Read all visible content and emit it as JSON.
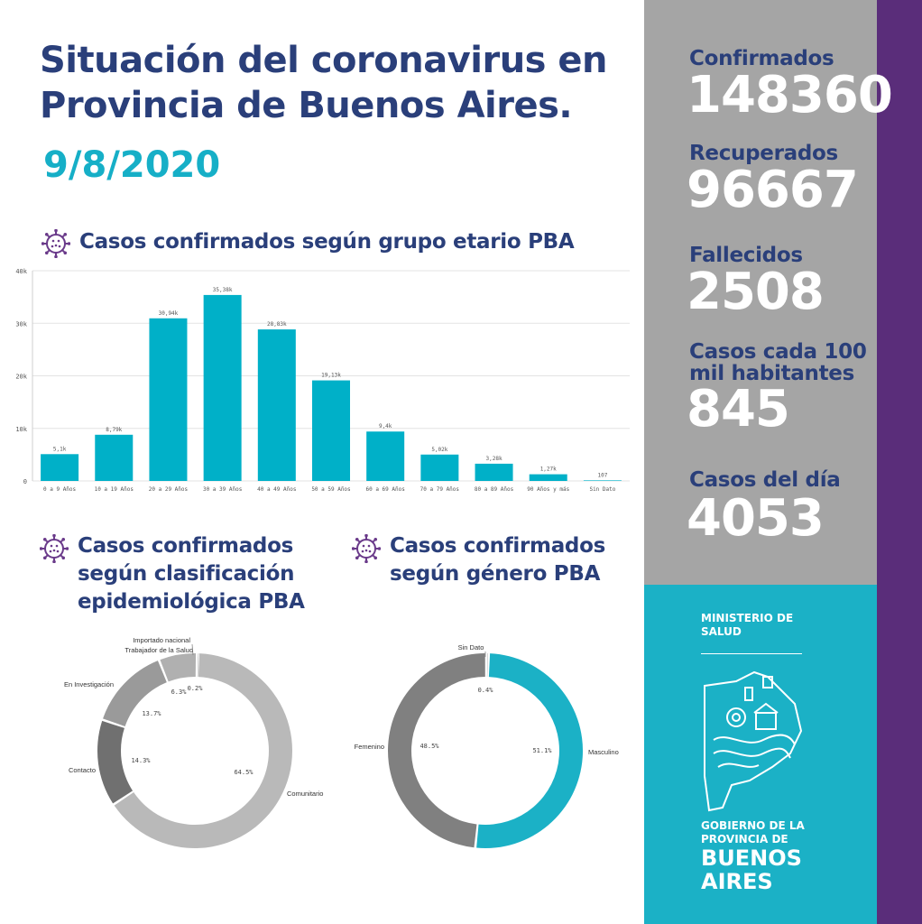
{
  "header": {
    "title_line1": "Situación del coronavirus en",
    "title_line2": "Provincia de Buenos Aires.",
    "date": "9/8/2020"
  },
  "sections": {
    "age_title": "Casos confirmados según grupo etario PBA",
    "epi_title_l1": "Casos confirmados",
    "epi_title_l2": "según clasificación",
    "epi_title_l3": "epidemiológica PBA",
    "gender_title_l1": "Casos confirmados",
    "gender_title_l2": "según género PBA"
  },
  "stats": {
    "confirmados_label": "Confirmados",
    "confirmados_value": "148360",
    "recuperados_label": "Recuperados",
    "recuperados_value": "96667",
    "fallecidos_label": "Fallecidos",
    "fallecidos_value": "2508",
    "casos100_label_l1": "Casos cada 100",
    "casos100_label_l2": "mil habitantes",
    "casos100_value": "845",
    "casosdia_label": "Casos del día",
    "casosdia_value": "4053"
  },
  "branding": {
    "ministry_l1": "MINISTERIO DE",
    "ministry_l2": "SALUD",
    "gov_l1": "GOBIERNO DE LA",
    "gov_l2": "PROVINCIA DE",
    "gov_l3": "BUENOS",
    "gov_l4": "AIRES"
  },
  "colors": {
    "navy": "#2a3f7a",
    "cyan": "#16afc7",
    "bar": "#00b0c8",
    "gray_sidebar": "#a5a5a5",
    "purple": "#5a2d7a",
    "icon_purple": "#6a3a8a"
  },
  "icons": {
    "section_icon": "virus-icon",
    "logo": "buenos-aires-province-logo"
  },
  "chart_data": [
    {
      "type": "bar",
      "categories": [
        "0 a 9 Años",
        "10 a 19 Años",
        "20 a 29 Años",
        "30 a 39 Años",
        "40 a 49 Años",
        "50 a 59 Años",
        "60 a 69 Años",
        "70 a 79 Años",
        "80 a 89 Años",
        "90 Años y más",
        "Sin Dato"
      ],
      "values": [
        5100,
        8790,
        30940,
        35380,
        28830,
        19130,
        9400,
        5020,
        3280,
        1270,
        107
      ],
      "data_labels": [
        "5,1k",
        "8,79k",
        "30,94k",
        "35,38k",
        "28,83k",
        "19,13k",
        "9,4k",
        "5,02k",
        "3,28k",
        "1,27k",
        "107"
      ],
      "yticks": [
        0,
        10000,
        20000,
        30000,
        40000
      ],
      "ytick_labels": [
        "0",
        "10k",
        "20k",
        "30k",
        "40k"
      ],
      "ylim": [
        0,
        40000
      ],
      "grid": true
    },
    {
      "type": "pie",
      "variant": "donut",
      "labels": [
        "Comunitario",
        "Contacto",
        "En Investigación",
        "Trabajador de la Salud",
        "Importado nacional"
      ],
      "values": [
        64.5,
        14.3,
        13.7,
        6.3,
        0.2
      ],
      "value_labels": [
        "64.5%",
        "14.3%",
        "13.7%",
        "6.3%",
        "0.2%"
      ],
      "colors": [
        "#b9b9b9",
        "#707070",
        "#9a9a9a",
        "#b0b0b0",
        "#8a8a8a"
      ]
    },
    {
      "type": "pie",
      "variant": "donut",
      "labels": [
        "Masculino",
        "Femenino",
        "Sin Dato"
      ],
      "values": [
        51.1,
        48.5,
        0.4
      ],
      "value_labels": [
        "51.1%",
        "48.5%",
        "0.4%"
      ],
      "colors": [
        "#1bb1c6",
        "#808080",
        "#a0a0a0"
      ]
    }
  ]
}
